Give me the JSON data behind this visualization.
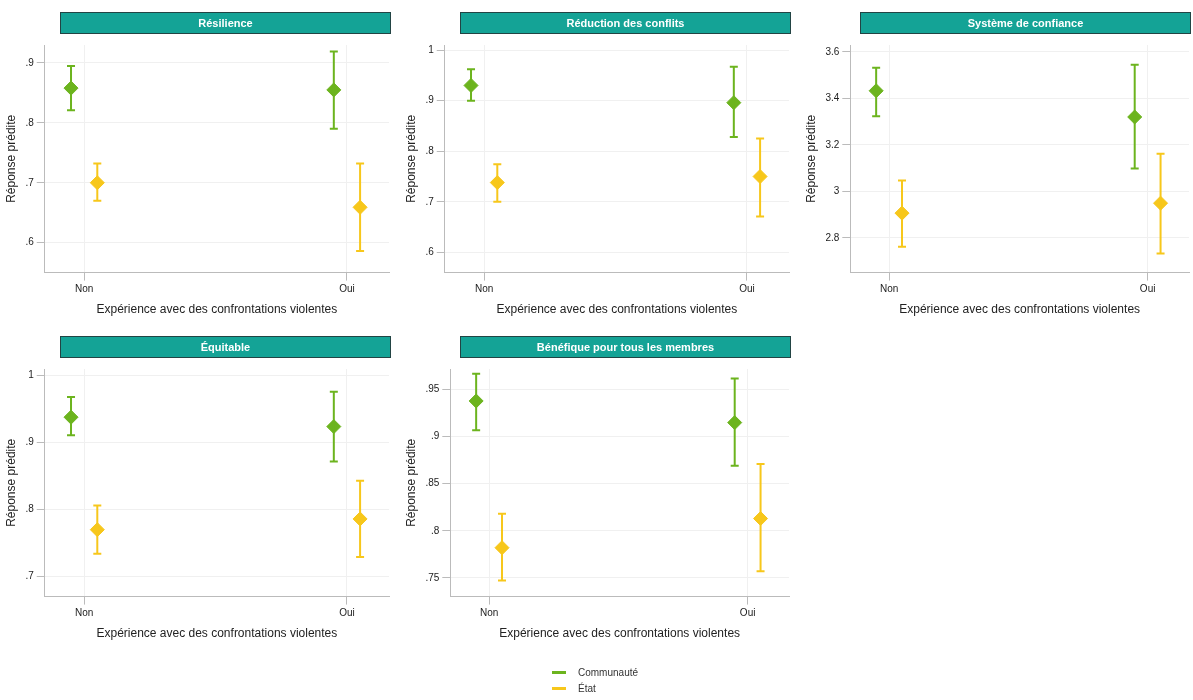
{
  "chart_data": [
    {
      "type": "scatter",
      "title": "Résilience",
      "xlabel": "Expérience avec des confrontations violentes",
      "ylabel": "Réponse prédite",
      "categories": [
        "Non",
        "Oui"
      ],
      "ylim": [
        0.55,
        0.93
      ],
      "yticks": [
        {
          "value": 0.6,
          "label": ".6"
        },
        {
          "value": 0.7,
          "label": ".7"
        },
        {
          "value": 0.8,
          "label": ".8"
        },
        {
          "value": 0.9,
          "label": ".9"
        }
      ],
      "grid": true,
      "marker": "diamond",
      "series": [
        {
          "color": "#6cb41e",
          "values": [
            0.858,
            0.855
          ],
          "errors": [
            [
              0.821,
              0.895
            ],
            [
              0.79,
              0.919
            ]
          ]
        },
        {
          "color": "#f7c71b",
          "values": [
            0.7,
            0.659
          ],
          "errors": [
            [
              0.67,
              0.732
            ],
            [
              0.586,
              0.732
            ]
          ]
        }
      ]
    },
    {
      "type": "scatter",
      "title": "Réduction des conflits",
      "xlabel": "Expérience avec des confrontations violentes",
      "ylabel": "Réponse prédite",
      "categories": [
        "Non",
        "Oui"
      ],
      "ylim": [
        0.56,
        1.01
      ],
      "yticks": [
        {
          "value": 0.6,
          "label": ".6"
        },
        {
          "value": 0.7,
          "label": ".7"
        },
        {
          "value": 0.8,
          "label": ".8"
        },
        {
          "value": 0.9,
          "label": ".9"
        },
        1
      ],
      "grid": true,
      "marker": "diamond",
      "series": [
        {
          "color": "#6cb41e",
          "values": [
            0.93,
            0.896
          ],
          "errors": [
            [
              0.9,
              0.962
            ],
            [
              0.828,
              0.967
            ]
          ]
        },
        {
          "color": "#f7c71b",
          "values": [
            0.738,
            0.75
          ],
          "errors": [
            [
              0.7,
              0.774
            ],
            [
              0.671,
              0.825
            ]
          ]
        }
      ]
    },
    {
      "type": "scatter",
      "title": "Système de confiance",
      "xlabel": "Expérience avec des confrontations violentes",
      "ylabel": "Réponse prédite",
      "categories": [
        "Non",
        "Oui"
      ],
      "ylim": [
        2.65,
        3.63
      ],
      "yticks": [
        2.8,
        3,
        3.2,
        3.4,
        3.6
      ],
      "grid": true,
      "marker": "diamond",
      "series": [
        {
          "color": "#6cb41e",
          "values": [
            3.433,
            3.32
          ],
          "errors": [
            [
              3.323,
              3.532
            ],
            [
              3.098,
              3.545
            ]
          ]
        },
        {
          "color": "#f7c71b",
          "values": [
            2.906,
            2.949
          ],
          "errors": [
            [
              2.761,
              3.047
            ],
            [
              2.732,
              3.162
            ]
          ]
        }
      ]
    },
    {
      "type": "scatter",
      "title": "Équitable",
      "xlabel": "Expérience avec des confrontations violentes",
      "ylabel": "Réponse prédite",
      "categories": [
        "Non",
        "Oui"
      ],
      "ylim": [
        0.67,
        1.01
      ],
      "yticks": [
        {
          "value": 0.7,
          "label": ".7"
        },
        {
          "value": 0.8,
          "label": ".8"
        },
        {
          "value": 0.9,
          "label": ".9"
        },
        1
      ],
      "grid": true,
      "marker": "diamond",
      "series": [
        {
          "color": "#6cb41e",
          "values": [
            0.938,
            0.924
          ],
          "errors": [
            [
              0.911,
              0.968
            ],
            [
              0.872,
              0.976
            ]
          ]
        },
        {
          "color": "#f7c71b",
          "values": [
            0.77,
            0.786
          ],
          "errors": [
            [
              0.734,
              0.806
            ],
            [
              0.729,
              0.843
            ]
          ]
        }
      ]
    },
    {
      "type": "scatter",
      "title": "Bénéfique pour tous les membres",
      "xlabel": "Expérience avec des confrontations violentes",
      "ylabel": "Réponse prédite",
      "categories": [
        "Non",
        "Oui"
      ],
      "ylim": [
        0.73,
        0.972
      ],
      "yticks": [
        {
          "value": 0.75,
          "label": ".75"
        },
        {
          "value": 0.8,
          "label": ".8"
        },
        {
          "value": 0.85,
          "label": ".85"
        },
        {
          "value": 0.9,
          "label": ".9"
        },
        {
          "value": 0.95,
          "label": ".95"
        }
      ],
      "grid": true,
      "marker": "diamond",
      "legend": "bottom",
      "series": [
        {
          "name": "Communauté",
          "color": "#6cb41e",
          "values": [
            0.938,
            0.915
          ],
          "errors": [
            [
              0.907,
              0.967
            ],
            [
              0.869,
              0.962
            ]
          ]
        },
        {
          "name": "État",
          "color": "#f7c71b",
          "values": [
            0.782,
            0.813
          ],
          "errors": [
            [
              0.747,
              0.818
            ],
            [
              0.757,
              0.871
            ]
          ]
        }
      ]
    }
  ]
}
